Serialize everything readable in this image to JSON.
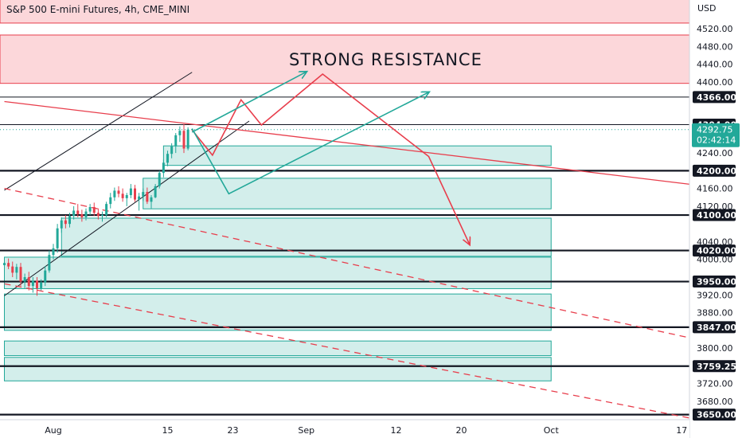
{
  "chart_data": {
    "type": "candlestick",
    "title": "S&P 500 E-mini Futures, 4h, CME_MINI",
    "currency_label": "USD",
    "y_ticks": [
      4520,
      4480,
      4440,
      4400,
      4240,
      4160,
      4120,
      4040,
      4000,
      3920,
      3880,
      3800,
      3720,
      3680
    ],
    "y_tick_labels": [
      "4520.00",
      "4480.00",
      "4440.00",
      "4400.00",
      "4240.00",
      "4160.00",
      "4120.00",
      "4040.00",
      "4000.00",
      "3920.00",
      "3880.00",
      "3800.00",
      "3720.00",
      "3680.00"
    ],
    "ylim": [
      3630,
      4560
    ],
    "x_ticks": [
      {
        "label": "Aug",
        "day": 0
      },
      {
        "label": "15",
        "day": 14
      },
      {
        "label": "23",
        "day": 22
      },
      {
        "label": "Sep",
        "day": 31
      },
      {
        "label": "12",
        "day": 42
      },
      {
        "label": "20",
        "day": 50
      },
      {
        "label": "Oct",
        "day": 61
      },
      {
        "label": "17",
        "day": 77
      }
    ],
    "key_levels": [
      {
        "value": 4366,
        "label": "4366.00",
        "style": "thin"
      },
      {
        "value": 4304,
        "label": "4304.00",
        "style": "thin"
      },
      {
        "value": 4200,
        "label": "4200.00",
        "style": "thick"
      },
      {
        "value": 4100,
        "label": "4100.00",
        "style": "thick"
      },
      {
        "value": 4020,
        "label": "4020.00",
        "style": "thick"
      },
      {
        "value": 3950,
        "label": "3950.00",
        "style": "thick"
      },
      {
        "value": 3847,
        "label": "3847.00",
        "style": "thick"
      },
      {
        "value": 3759.25,
        "label": "3759.25",
        "style": "thick"
      },
      {
        "value": 3650,
        "label": "3650.00",
        "style": "thick"
      }
    ],
    "last_price": {
      "value": 4292.75,
      "label": "4292.75",
      "countdown": "02:42:14"
    },
    "resistance_zones": [
      {
        "from": 4533,
        "to": 4595
      },
      {
        "from": 4397,
        "to": 4506
      }
    ],
    "support_boxes": [
      {
        "day_from": 13.5,
        "day_to": 61,
        "from": 4212,
        "to": 4256
      },
      {
        "day_from": 11,
        "day_to": 61,
        "from": 4114,
        "to": 4183
      },
      {
        "day_from": 1,
        "day_to": 61,
        "from": 4007,
        "to": 4093
      },
      {
        "day_from": -6,
        "day_to": 61,
        "from": 3934,
        "to": 4005
      },
      {
        "day_from": -6,
        "day_to": 61,
        "from": 3840,
        "to": 3922
      },
      {
        "day_from": -6,
        "day_to": 61,
        "from": 3783,
        "to": 3816
      },
      {
        "day_from": -6,
        "day_to": 61,
        "from": 3726,
        "to": 3779
      }
    ],
    "annotation": "STRONG RESISTANCE",
    "candles": [
      [
        -6.0,
        3987,
        4000,
        3975,
        3992
      ],
      [
        -5.5,
        3992,
        4002,
        3978,
        3984
      ],
      [
        -5.0,
        3984,
        3995,
        3960,
        3970
      ],
      [
        -4.5,
        3970,
        3990,
        3955,
        3983
      ],
      [
        -4.0,
        3983,
        3992,
        3940,
        3950
      ],
      [
        -3.5,
        3950,
        3968,
        3935,
        3960
      ],
      [
        -3.0,
        3960,
        3972,
        3930,
        3940
      ],
      [
        -2.5,
        3940,
        3960,
        3925,
        3952
      ],
      [
        -2.0,
        3952,
        3960,
        3918,
        3935
      ],
      [
        -1.5,
        3935,
        3955,
        3930,
        3948
      ],
      [
        -1.0,
        3948,
        3985,
        3940,
        3975
      ],
      [
        -0.5,
        3975,
        4020,
        3970,
        4010
      ],
      [
        0.0,
        4010,
        4035,
        4000,
        4025
      ],
      [
        0.5,
        4025,
        4080,
        4015,
        4070
      ],
      [
        1.0,
        4070,
        4095,
        4060,
        4088
      ],
      [
        1.5,
        4088,
        4100,
        4070,
        4080
      ],
      [
        2.0,
        4080,
        4105,
        4072,
        4098
      ],
      [
        2.5,
        4098,
        4120,
        4090,
        4110
      ],
      [
        3.0,
        4110,
        4125,
        4095,
        4102
      ],
      [
        3.5,
        4102,
        4112,
        4085,
        4095
      ],
      [
        4.0,
        4095,
        4115,
        4088,
        4108
      ],
      [
        4.5,
        4108,
        4125,
        4100,
        4118
      ],
      [
        5.0,
        4118,
        4128,
        4098,
        4105
      ],
      [
        5.5,
        4105,
        4115,
        4090,
        4098
      ],
      [
        6.0,
        4098,
        4108,
        4085,
        4100
      ],
      [
        6.5,
        4100,
        4130,
        4095,
        4125
      ],
      [
        7.0,
        4125,
        4150,
        4115,
        4140
      ],
      [
        7.5,
        4140,
        4162,
        4132,
        4155
      ],
      [
        8.0,
        4155,
        4165,
        4140,
        4148
      ],
      [
        8.5,
        4148,
        4160,
        4130,
        4138
      ],
      [
        9.0,
        4138,
        4150,
        4120,
        4145
      ],
      [
        9.5,
        4145,
        4170,
        4138,
        4160
      ],
      [
        10.0,
        4160,
        4168,
        4130,
        4135
      ],
      [
        10.5,
        4135,
        4150,
        4110,
        4142
      ],
      [
        11.0,
        4142,
        4160,
        4132,
        4152
      ],
      [
        11.5,
        4152,
        4162,
        4125,
        4130
      ],
      [
        12.0,
        4130,
        4145,
        4115,
        4140
      ],
      [
        12.5,
        4140,
        4170,
        4138,
        4165
      ],
      [
        13.0,
        4165,
        4200,
        4160,
        4195
      ],
      [
        13.5,
        4195,
        4225,
        4185,
        4218
      ],
      [
        14.0,
        4218,
        4245,
        4210,
        4238
      ],
      [
        14.5,
        4238,
        4262,
        4228,
        4255
      ],
      [
        15.0,
        4255,
        4285,
        4240,
        4280
      ],
      [
        15.5,
        4280,
        4300,
        4265,
        4290
      ],
      [
        16.0,
        4290,
        4305,
        4240,
        4250
      ],
      [
        16.5,
        4250,
        4298,
        4246,
        4292.75
      ]
    ],
    "pattern_lines": [
      {
        "id": "rising-channel-upper",
        "color": "#131722",
        "dashed": false,
        "points": [
          [
            -6,
            4156
          ],
          [
            17,
            4422
          ]
        ]
      },
      {
        "id": "rising-channel-lower",
        "color": "#131722",
        "dashed": false,
        "points": [
          [
            -6,
            3918
          ],
          [
            24,
            4312
          ]
        ]
      },
      {
        "id": "descending-trendline",
        "color": "#e83e4c",
        "dashed": false,
        "points": [
          [
            -6,
            4356
          ],
          [
            80,
            4165
          ]
        ]
      },
      {
        "id": "dashed-channel-upper",
        "color": "#e83e4c",
        "dashed": true,
        "points": [
          [
            -6,
            4160
          ],
          [
            80,
            3815
          ]
        ]
      },
      {
        "id": "dashed-channel-lower",
        "color": "#e83e4c",
        "dashed": true,
        "points": [
          [
            -6,
            3945
          ],
          [
            80,
            3635
          ]
        ]
      }
    ],
    "projection_paths": [
      {
        "id": "red-zigzag-path",
        "color": "#e83e4c",
        "arrow": true,
        "points": [
          [
            17,
            4292
          ],
          [
            19.5,
            4235
          ],
          [
            23,
            4360
          ],
          [
            25.5,
            4303
          ],
          [
            33,
            4418
          ],
          [
            46,
            4232
          ],
          [
            51,
            4034
          ]
        ]
      },
      {
        "id": "teal-zigzag-path",
        "color": "#22a899",
        "arrow": true,
        "points": [
          [
            17,
            4295
          ],
          [
            21.5,
            4148
          ],
          [
            46,
            4377
          ]
        ]
      },
      {
        "id": "teal-arrow-up",
        "color": "#22a899",
        "arrow": true,
        "points": [
          [
            17,
            4287
          ],
          [
            31,
            4423
          ]
        ]
      }
    ]
  }
}
